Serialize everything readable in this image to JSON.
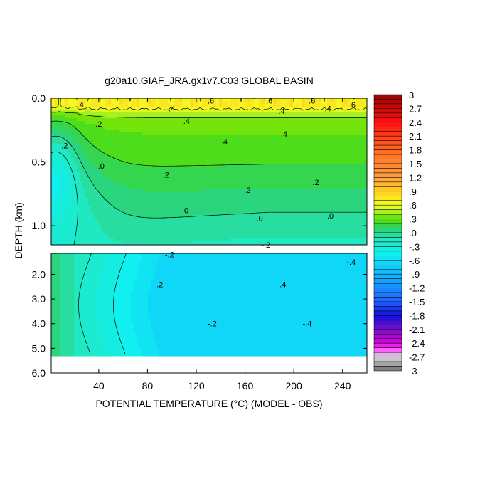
{
  "chart_data": {
    "type": "heatmap",
    "title": "g20a10.GIAF_JRA.gx1v7.C03 GLOBAL BASIN",
    "xlabel": "POTENTIAL TEMPERATURE (°C) (MODEL - OBS)",
    "ylabel": "DEPTH (km)",
    "x_range": [
      1,
      260
    ],
    "x_ticks": [
      40,
      80,
      120,
      160,
      200,
      240
    ],
    "x_tick_labels": [
      "40",
      "80",
      "120",
      "160",
      "200",
      "240"
    ],
    "upper_panel": {
      "depth_range": [
        0.0,
        1.15
      ],
      "y_ticks": [
        0.0,
        0.5,
        1.0
      ],
      "y_tick_labels": [
        "0.0",
        "0.5",
        "1.0"
      ]
    },
    "lower_panel": {
      "depth_range": [
        1.15,
        6.0
      ],
      "y_ticks": [
        2.0,
        3.0,
        4.0,
        5.0,
        6.0
      ],
      "y_tick_labels": [
        "2.0",
        "3.0",
        "4.0",
        "5.0",
        "6.0"
      ],
      "data_bottom_depth": 5.3
    },
    "colorbar": {
      "min": -3.0,
      "max": 3.0,
      "step": 0.1,
      "tick_values": [
        3,
        2.7,
        2.4,
        2.1,
        1.8,
        1.5,
        1.2,
        0.9,
        0.6,
        0.3,
        0.0,
        -0.3,
        -0.6,
        -0.9,
        -1.2,
        -1.5,
        -1.8,
        -2.1,
        -2.4,
        -2.7,
        -3
      ],
      "tick_labels": [
        "3",
        "2.7",
        "2.4",
        "2.1",
        "1.8",
        "1.5",
        "1.2",
        ".9",
        ".6",
        ".3",
        ".0",
        "-.3",
        "-.6",
        "-.9",
        "-1.2",
        "-1.5",
        "-1.8",
        "-2.1",
        "-2.4",
        "-2.7",
        "-3"
      ],
      "stops": [
        {
          "v": 3.0,
          "c": "#a00000"
        },
        {
          "v": 2.4,
          "c": "#ff1010"
        },
        {
          "v": 1.8,
          "c": "#ff6a20"
        },
        {
          "v": 1.2,
          "c": "#ffa040"
        },
        {
          "v": 0.9,
          "c": "#ffd020"
        },
        {
          "v": 0.6,
          "c": "#f4ff20"
        },
        {
          "v": 0.45,
          "c": "#a8f020"
        },
        {
          "v": 0.3,
          "c": "#5ae000"
        },
        {
          "v": 0.1,
          "c": "#28d26a"
        },
        {
          "v": 0.0,
          "c": "#2cd890"
        },
        {
          "v": -0.15,
          "c": "#20e8c0"
        },
        {
          "v": -0.45,
          "c": "#10f0f0"
        },
        {
          "v": -0.9,
          "c": "#10b8ff"
        },
        {
          "v": -1.5,
          "c": "#2060ff"
        },
        {
          "v": -1.8,
          "c": "#1010e0"
        },
        {
          "v": -2.1,
          "c": "#7a10c8"
        },
        {
          "v": -2.4,
          "c": "#e000e0"
        },
        {
          "v": -2.55,
          "c": "#ff60ff"
        },
        {
          "v": -2.7,
          "c": "#d8d8d8"
        },
        {
          "v": -3.0,
          "c": "#707070"
        }
      ]
    },
    "contour_labels": [
      {
        "text": ".6",
        "x": 132,
        "depth": 0.02
      },
      {
        "text": ".6",
        "x": 180,
        "depth": 0.02
      },
      {
        "text": ".6",
        "x": 215,
        "depth": 0.02
      },
      {
        "text": ".6",
        "x": 248,
        "depth": 0.05
      },
      {
        "text": ".4",
        "x": 25,
        "depth": 0.05
      },
      {
        "text": ".4",
        "x": 100,
        "depth": 0.08
      },
      {
        "text": ".4",
        "x": 190,
        "depth": 0.1
      },
      {
        "text": ".4",
        "x": 228,
        "depth": 0.08
      },
      {
        "text": ".4",
        "x": 112,
        "depth": 0.18
      },
      {
        "text": ".4",
        "x": 143,
        "depth": 0.34
      },
      {
        "text": ".4",
        "x": 192,
        "depth": 0.28
      },
      {
        "text": ".2",
        "x": 40,
        "depth": 0.2
      },
      {
        "text": ".2",
        "x": 95,
        "depth": 0.6
      },
      {
        "text": ".2",
        "x": 162,
        "depth": 0.72
      },
      {
        "text": ".2",
        "x": 218,
        "depth": 0.66
      },
      {
        "text": ".0",
        "x": 42,
        "depth": 0.53
      },
      {
        "text": ".0",
        "x": 111,
        "depth": 0.88
      },
      {
        "text": ".0",
        "x": 172,
        "depth": 0.94
      },
      {
        "text": ".0",
        "x": 230,
        "depth": 0.92
      },
      {
        "text": ".2",
        "x": 12,
        "depth": 0.37
      },
      {
        "text": "-.2",
        "x": 98,
        "depth": 1.2
      },
      {
        "text": "-.2",
        "x": 177,
        "depth": 1.15
      },
      {
        "text": "-.4",
        "x": 247,
        "depth": 1.5
      },
      {
        "text": "-.2",
        "x": 89,
        "depth": 2.4
      },
      {
        "text": "-.4",
        "x": 190,
        "depth": 2.4
      },
      {
        "text": "-.2",
        "x": 133,
        "depth": 4.0
      },
      {
        "text": "-.4",
        "x": 211,
        "depth": 4.0
      }
    ]
  }
}
